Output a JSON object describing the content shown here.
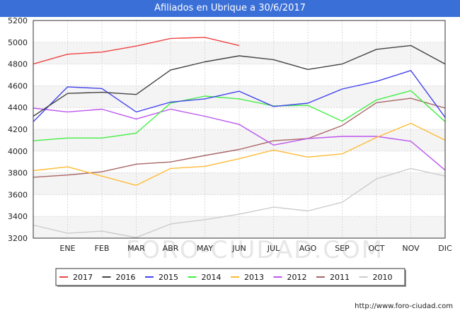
{
  "title": "Afiliados en Ubrique a 30/6/2017",
  "footer_url": "http://www.foro-ciudad.com",
  "watermark": "FORO-CIUDAD.COM",
  "chart_data": {
    "type": "line",
    "title": "Afiliados en Ubrique a 30/6/2017",
    "xlabel": "",
    "ylabel": "",
    "x": [
      "",
      "ENE",
      "FEB",
      "MAR",
      "ABR",
      "MAY",
      "JUN",
      "JUL",
      "AGO",
      "SEP",
      "OCT",
      "NOV",
      "DIC"
    ],
    "ylim": [
      3200,
      5200
    ],
    "yticks": [
      3200,
      3400,
      3600,
      3800,
      4000,
      4200,
      4400,
      4600,
      4800,
      5000,
      5200
    ],
    "grid": true,
    "legend_position": "bottom",
    "series": [
      {
        "name": "2017",
        "color": "#ee4444",
        "values": [
          4800,
          4890,
          4910,
          4965,
          5035,
          5045,
          4970,
          null,
          null,
          null,
          null,
          null,
          null
        ]
      },
      {
        "name": "2016",
        "color": "#444444",
        "values": [
          4320,
          4530,
          4540,
          4520,
          4745,
          4820,
          4875,
          4840,
          4750,
          4800,
          4935,
          4970,
          4800
        ]
      },
      {
        "name": "2015",
        "color": "#4444ee",
        "values": [
          4270,
          4590,
          4575,
          4360,
          4450,
          4480,
          4550,
          4410,
          4440,
          4570,
          4640,
          4740,
          4310
        ]
      },
      {
        "name": "2014",
        "color": "#44ee44",
        "values": [
          4095,
          4120,
          4120,
          4165,
          4440,
          4505,
          4480,
          4415,
          4420,
          4275,
          4470,
          4555,
          4270
        ]
      },
      {
        "name": "2013",
        "color": "#ffbb33",
        "values": [
          3820,
          3855,
          3770,
          3685,
          3840,
          3860,
          3930,
          4010,
          3945,
          3975,
          4125,
          4255,
          4100
        ]
      },
      {
        "name": "2012",
        "color": "#bb55ee",
        "values": [
          4395,
          4360,
          4385,
          4295,
          4385,
          4320,
          4245,
          4055,
          4115,
          4135,
          4135,
          4090,
          3825
        ]
      },
      {
        "name": "2011",
        "color": "#aa6666",
        "values": [
          3760,
          3780,
          3810,
          3880,
          3900,
          3960,
          4015,
          4095,
          4115,
          4235,
          4445,
          4485,
          4395
        ]
      },
      {
        "name": "2010",
        "color": "#cccccc",
        "values": [
          3320,
          3245,
          3265,
          3205,
          3330,
          3370,
          3420,
          3485,
          3450,
          3530,
          3745,
          3840,
          3770
        ]
      }
    ]
  }
}
